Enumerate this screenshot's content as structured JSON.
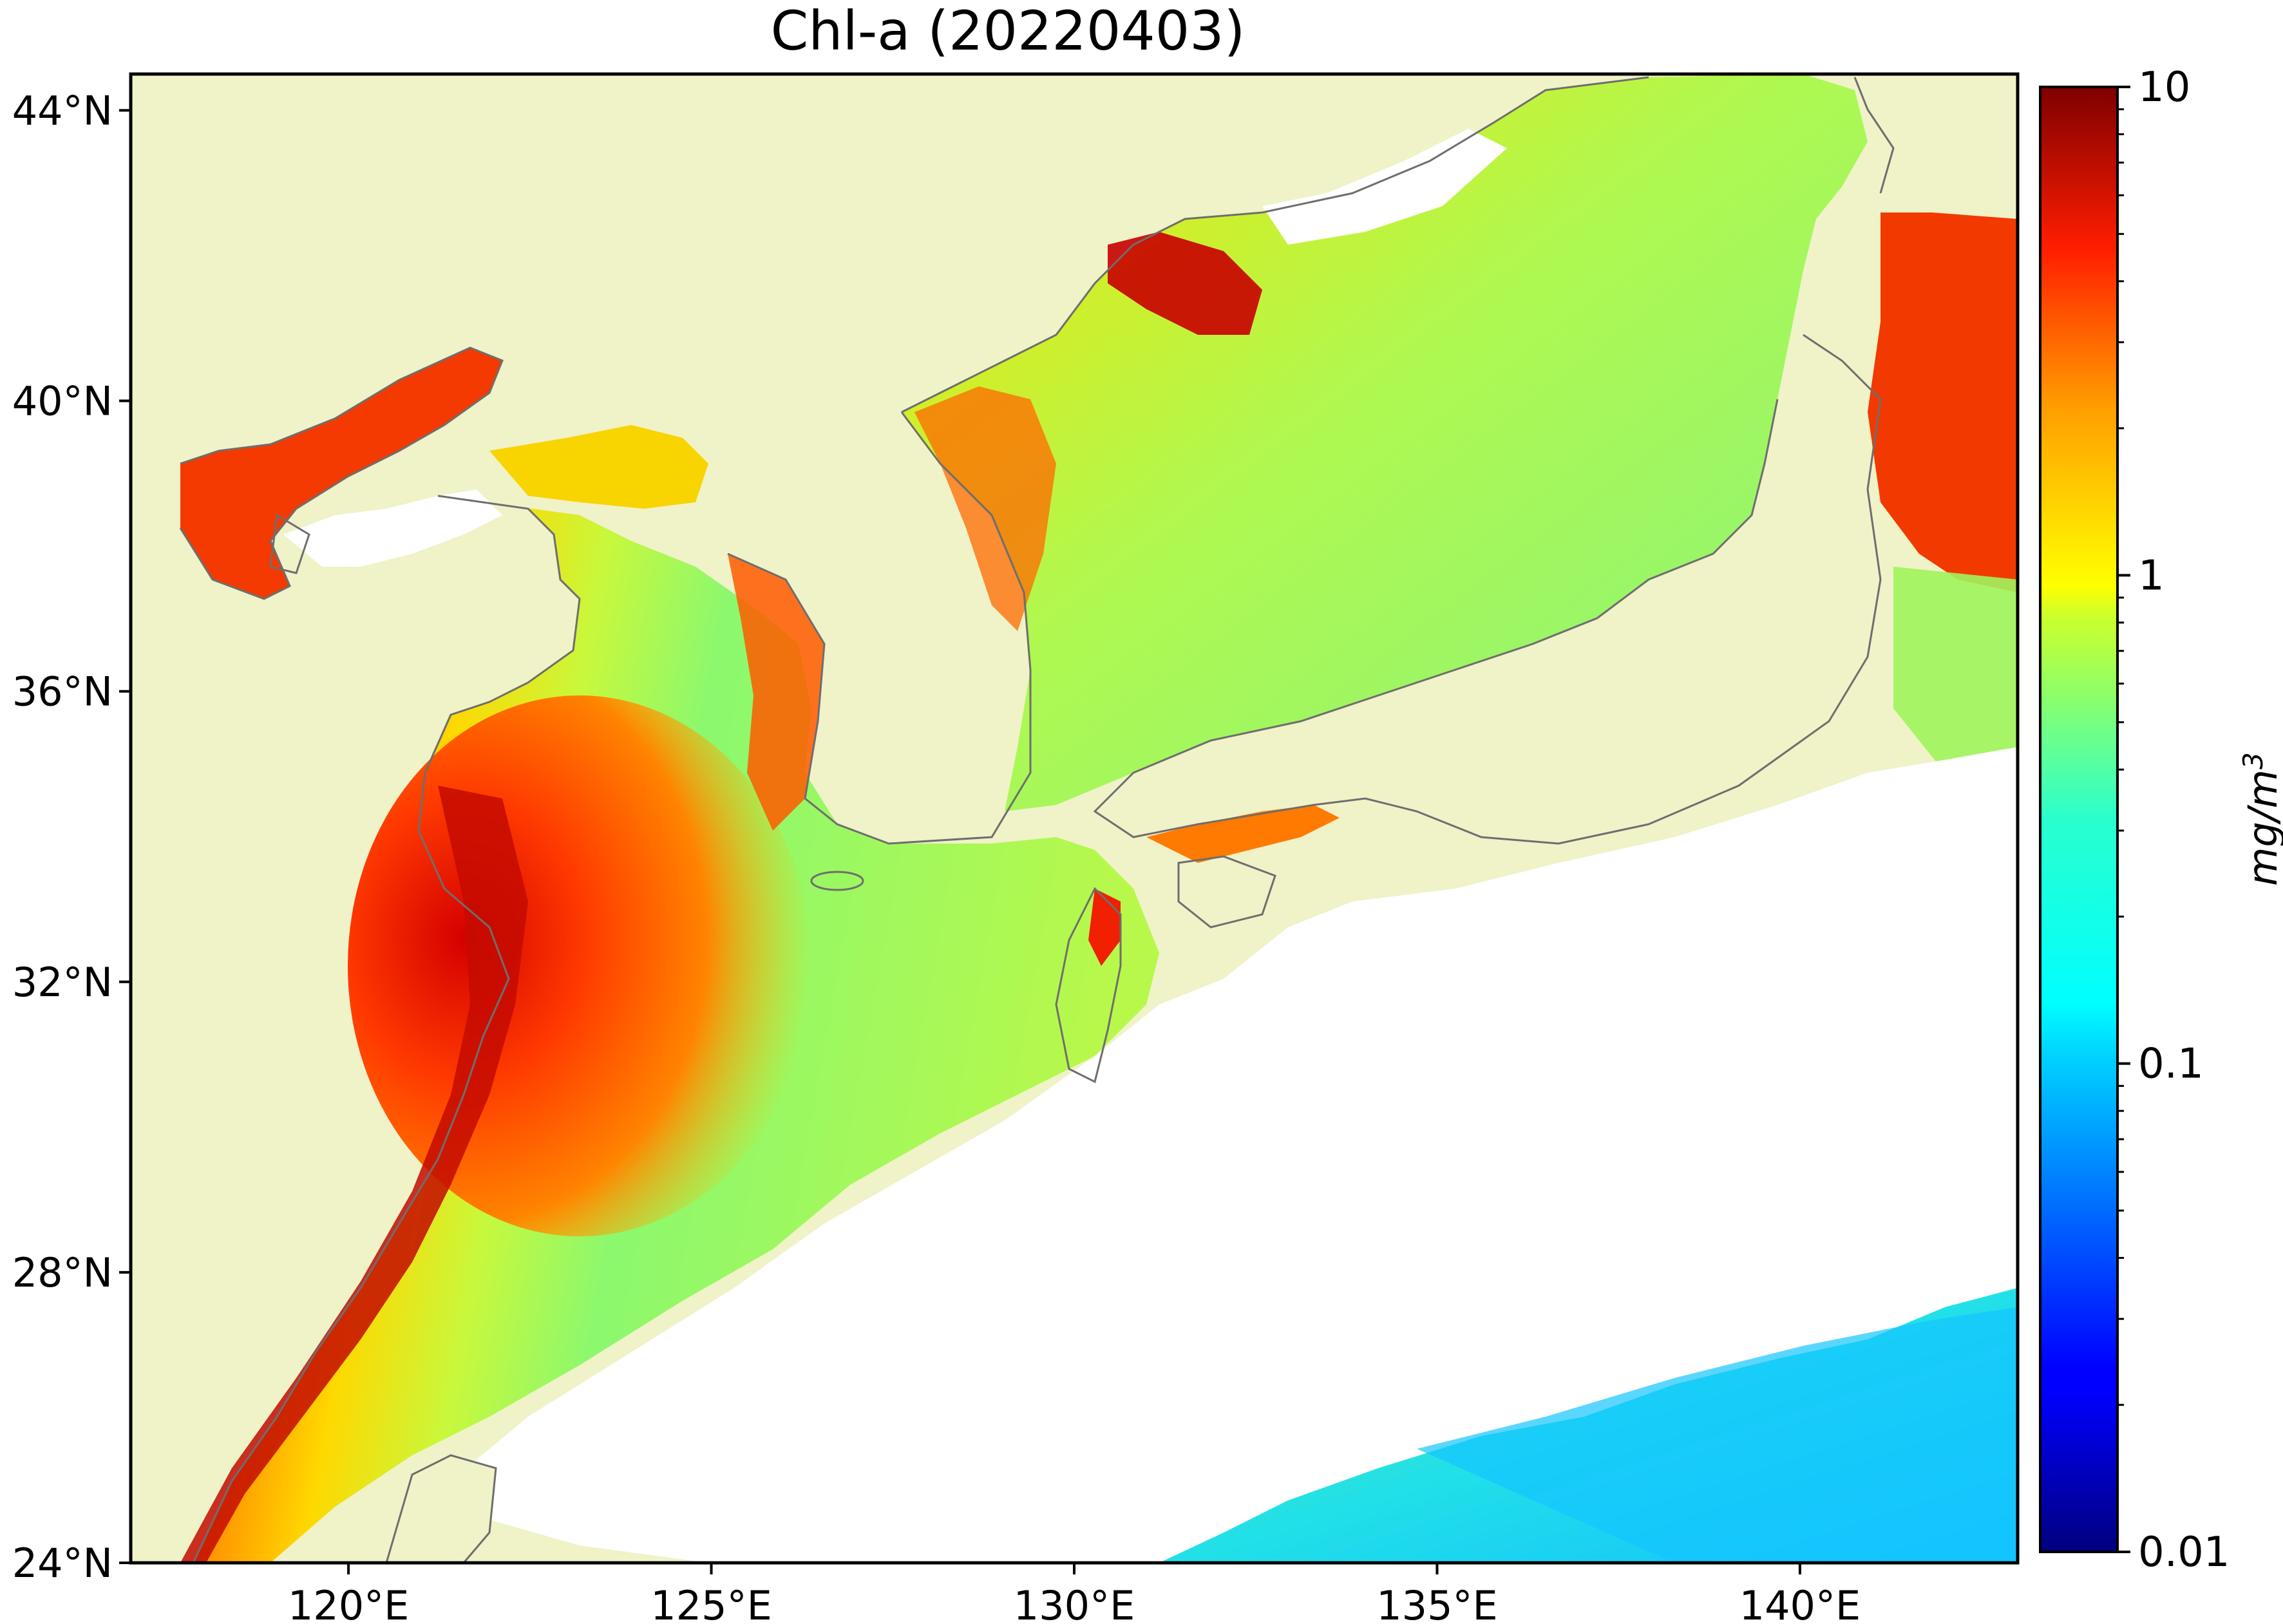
{
  "title": "Chl-a (20220403)",
  "map": {
    "lon_ticks": [
      "120°E",
      "125°E",
      "130°E",
      "135°E",
      "140°E"
    ],
    "lat_ticks": [
      "24°N",
      "28°N",
      "32°N",
      "36°N",
      "40°N",
      "44°N"
    ],
    "lon_range": [
      117,
      143
    ],
    "lat_range": [
      24,
      44.5
    ],
    "land_color": "#f0f2c8",
    "coastline_color": "#6e6e6e",
    "no_data_color": "#ffffff"
  },
  "colorbar": {
    "scale": "log",
    "range": [
      0.01,
      10
    ],
    "tick_labels": [
      "10",
      "1",
      "0.1",
      "0.01"
    ],
    "unit_base": "mg/m",
    "unit_exp": "3",
    "colormap": "jet"
  }
}
